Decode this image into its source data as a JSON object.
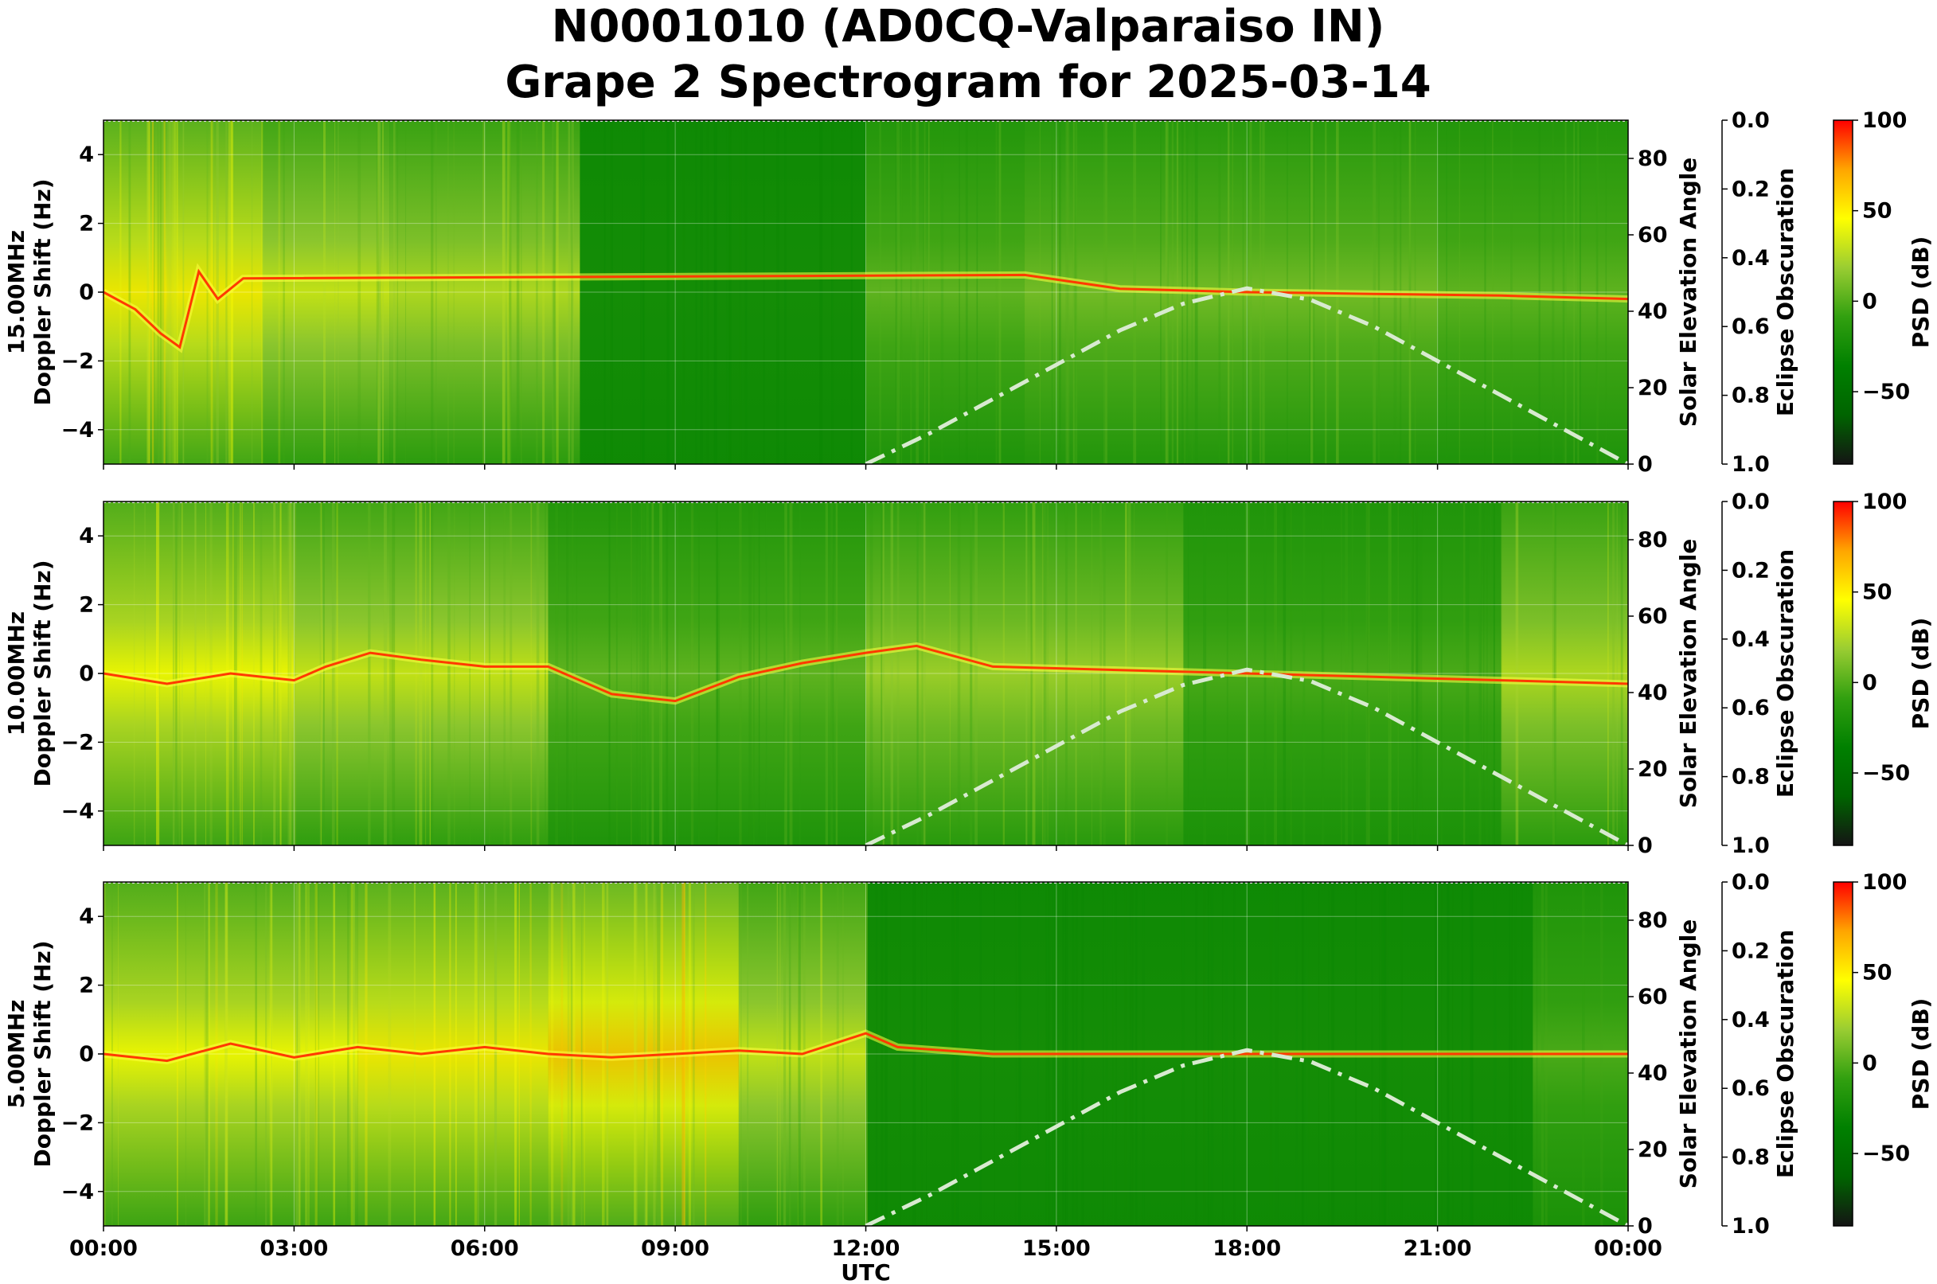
{
  "figure": {
    "title_line1": "N0001010 (AD0CQ-Valparaiso IN)",
    "title_line2": "Grape 2 Spectrogram for 2025-03-14"
  },
  "colors": {
    "cmap": [
      "#141414",
      "#006400",
      "#008000",
      "#32a010",
      "#9acd32",
      "#ffff00",
      "#ffa500",
      "#ff0000"
    ],
    "sun_curve": "#d8ead0",
    "carrier": "#ff3a00"
  },
  "chart_data": [
    {
      "type": "heatmap",
      "panel": "15MHz",
      "ylabel_line1": "15.00MHz",
      "ylabel_line2": "Doppler Shift (Hz)",
      "xlabel": "",
      "ylim": [
        -5,
        5
      ],
      "yticks": [
        4,
        2,
        0,
        -2,
        -4
      ],
      "ytick_labels": [
        "4",
        "2",
        "0",
        "−2",
        "−4"
      ],
      "xlim_hours": [
        0,
        24
      ],
      "xticks_hours": [
        0,
        3,
        6,
        9,
        12,
        15,
        18,
        21,
        24
      ],
      "grid": true,
      "solar_elevation_axis": {
        "label": "Solar Elevation Angle",
        "range": [
          0,
          90
        ],
        "ticks": [
          0,
          20,
          40,
          60,
          80
        ]
      },
      "eclipse_axis": {
        "label": "Eclipse Obscuration",
        "range": [
          1.0,
          0.0
        ],
        "tick_labels": [
          "0.0",
          "0.2",
          "0.4",
          "0.6",
          "0.8",
          "1.0"
        ]
      },
      "colorbar": {
        "label": "PSD (dB)",
        "range": [
          -90,
          100
        ],
        "ticks": [
          100,
          50,
          0,
          -50
        ],
        "tick_labels": [
          "100",
          "50",
          "0",
          "−50"
        ]
      },
      "solar_elevation_curve": {
        "x": [
          12,
          13,
          14,
          15,
          16,
          17,
          18,
          19,
          20,
          21,
          22,
          23,
          24
        ],
        "y": [
          0,
          8,
          17,
          26,
          35,
          42,
          46,
          43,
          36,
          27,
          18,
          9,
          0
        ]
      },
      "carrier_trace": {
        "x": [
          0,
          0.5,
          0.9,
          1.2,
          1.5,
          1.8,
          2.2,
          14.5,
          16,
          18,
          20,
          22,
          24
        ],
        "y": [
          0,
          -0.5,
          -1.2,
          -1.6,
          0.6,
          -0.2,
          0.4,
          0.5,
          0.1,
          0,
          -0.05,
          -0.1,
          -0.2
        ]
      },
      "activity": [
        {
          "x0": 0,
          "x1": 2.5,
          "level": 0.7
        },
        {
          "x0": 2.5,
          "x1": 4.5,
          "level": 0.55
        },
        {
          "x0": 4.5,
          "x1": 7.5,
          "level": 0.5
        },
        {
          "x0": 7.5,
          "x1": 12,
          "level": 0.05
        },
        {
          "x0": 12,
          "x1": 14.5,
          "level": 0.3
        },
        {
          "x0": 14.5,
          "x1": 21,
          "level": 0.35
        },
        {
          "x0": 21,
          "x1": 24,
          "level": 0.3
        }
      ]
    },
    {
      "type": "heatmap",
      "panel": "10MHz",
      "ylabel_line1": "10.00MHz",
      "ylabel_line2": "Doppler Shift (Hz)",
      "xlabel": "",
      "ylim": [
        -5,
        5
      ],
      "yticks": [
        4,
        2,
        0,
        -2,
        -4
      ],
      "ytick_labels": [
        "4",
        "2",
        "0",
        "−2",
        "−4"
      ],
      "xlim_hours": [
        0,
        24
      ],
      "xticks_hours": [
        0,
        3,
        6,
        9,
        12,
        15,
        18,
        21,
        24
      ],
      "grid": true,
      "solar_elevation_axis": {
        "label": "Solar Elevation Angle",
        "range": [
          0,
          90
        ],
        "ticks": [
          0,
          20,
          40,
          60,
          80
        ]
      },
      "eclipse_axis": {
        "label": "Eclipse Obscuration",
        "range": [
          1.0,
          0.0
        ],
        "tick_labels": [
          "0.0",
          "0.2",
          "0.4",
          "0.6",
          "0.8",
          "1.0"
        ]
      },
      "colorbar": {
        "label": "PSD (dB)",
        "range": [
          -90,
          100
        ],
        "ticks": [
          100,
          50,
          0,
          -50
        ],
        "tick_labels": [
          "100",
          "50",
          "0",
          "−50"
        ]
      },
      "solar_elevation_curve": {
        "x": [
          12,
          13,
          14,
          15,
          16,
          17,
          18,
          19,
          20,
          21,
          22,
          23,
          24
        ],
        "y": [
          0,
          8,
          17,
          26,
          35,
          42,
          46,
          43,
          36,
          27,
          18,
          9,
          0
        ]
      },
      "carrier_trace": {
        "x": [
          0,
          1,
          2,
          3,
          3.5,
          4.2,
          5,
          6,
          7,
          8,
          9,
          10,
          11,
          12,
          12.8,
          14,
          16,
          18,
          20,
          22,
          24
        ],
        "y": [
          0,
          -0.3,
          0,
          -0.2,
          0.2,
          0.6,
          0.4,
          0.2,
          0.2,
          -0.6,
          -0.8,
          -0.1,
          0.3,
          0.6,
          0.8,
          0.2,
          0.1,
          0,
          -0.1,
          -0.2,
          -0.3
        ]
      },
      "activity": [
        {
          "x0": 0,
          "x1": 3,
          "level": 0.65
        },
        {
          "x0": 3,
          "x1": 7,
          "level": 0.55
        },
        {
          "x0": 7,
          "x1": 12,
          "level": 0.3
        },
        {
          "x0": 12,
          "x1": 17,
          "level": 0.45
        },
        {
          "x0": 17,
          "x1": 22,
          "level": 0.25
        },
        {
          "x0": 22,
          "x1": 24,
          "level": 0.5
        }
      ]
    },
    {
      "type": "heatmap",
      "panel": "5MHz",
      "ylabel_line1": "5.00MHz",
      "ylabel_line2": "Doppler Shift (Hz)",
      "xlabel": "UTC",
      "ylim": [
        -5,
        5
      ],
      "yticks": [
        4,
        2,
        0,
        -2,
        -4
      ],
      "ytick_labels": [
        "4",
        "2",
        "0",
        "−2",
        "−4"
      ],
      "xlim_hours": [
        0,
        24
      ],
      "xticks_hours": [
        0,
        3,
        6,
        9,
        12,
        15,
        18,
        21,
        24
      ],
      "xtick_labels": [
        "00:00",
        "03:00",
        "06:00",
        "09:00",
        "12:00",
        "15:00",
        "18:00",
        "21:00",
        "00:00"
      ],
      "grid": true,
      "solar_elevation_axis": {
        "label": "Solar Elevation Angle",
        "range": [
          0,
          90
        ],
        "ticks": [
          0,
          20,
          40,
          60,
          80
        ]
      },
      "eclipse_axis": {
        "label": "Eclipse Obscuration",
        "range": [
          1.0,
          0.0
        ],
        "tick_labels": [
          "0.0",
          "0.2",
          "0.4",
          "0.6",
          "0.8",
          "1.0"
        ]
      },
      "colorbar": {
        "label": "PSD (dB)",
        "range": [
          -90,
          100
        ],
        "ticks": [
          100,
          50,
          0,
          -50
        ],
        "tick_labels": [
          "100",
          "50",
          "0",
          "−50"
        ]
      },
      "solar_elevation_curve": {
        "x": [
          12,
          13,
          14,
          15,
          16,
          17,
          18,
          19,
          20,
          21,
          22,
          23,
          24
        ],
        "y": [
          0,
          8,
          17,
          26,
          35,
          42,
          46,
          43,
          36,
          27,
          18,
          9,
          0
        ]
      },
      "carrier_trace": {
        "x": [
          0,
          1,
          2,
          3,
          4,
          5,
          6,
          7,
          8,
          9,
          10,
          11,
          12,
          12.5,
          14,
          16,
          18,
          20,
          22,
          24
        ],
        "y": [
          0,
          -0.2,
          0.3,
          -0.1,
          0.2,
          0,
          0.2,
          0,
          -0.1,
          0,
          0.1,
          0,
          0.6,
          0.2,
          0,
          0,
          0,
          0,
          0,
          0
        ]
      },
      "activity": [
        {
          "x0": 0,
          "x1": 4,
          "level": 0.65
        },
        {
          "x0": 4,
          "x1": 7,
          "level": 0.7
        },
        {
          "x0": 7,
          "x1": 10,
          "level": 0.8
        },
        {
          "x0": 10,
          "x1": 12,
          "level": 0.55
        },
        {
          "x0": 12,
          "x1": 22.5,
          "level": 0.05
        },
        {
          "x0": 22.5,
          "x1": 24,
          "level": 0.25
        }
      ]
    }
  ]
}
